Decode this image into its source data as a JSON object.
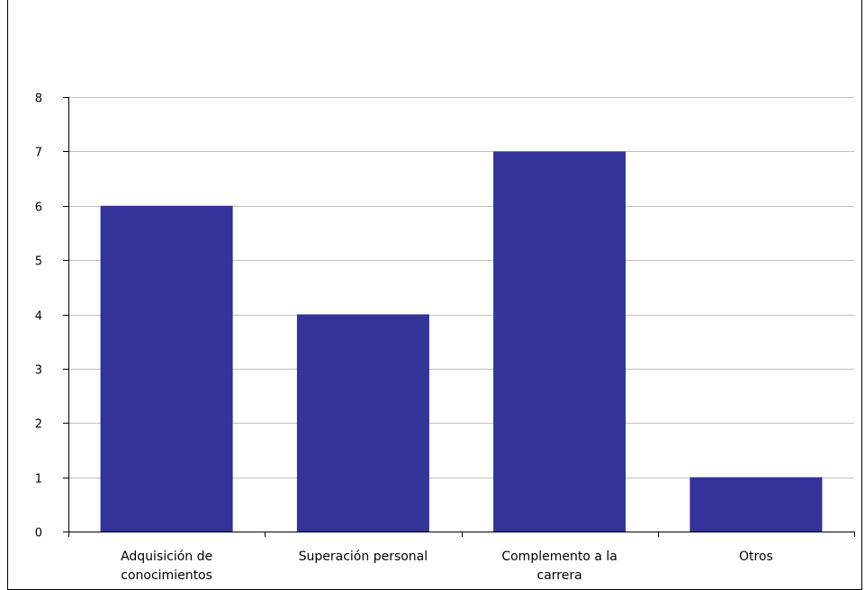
{
  "chart_data": {
    "type": "bar",
    "title": "",
    "categories": [
      [
        "Adquisición de",
        "conocimientos"
      ],
      [
        "Superación personal"
      ],
      [
        "Complemento a la",
        "carrera"
      ],
      [
        "Otros"
      ]
    ],
    "values": [
      6,
      4,
      7,
      1
    ],
    "ylim": [
      0,
      8
    ],
    "yticks": [
      0,
      1,
      2,
      3,
      4,
      5,
      6,
      7,
      8
    ],
    "xlabel": "",
    "ylabel": "",
    "grid": true,
    "bar_color": "#333399",
    "grid_color": "#c0c0c0"
  }
}
